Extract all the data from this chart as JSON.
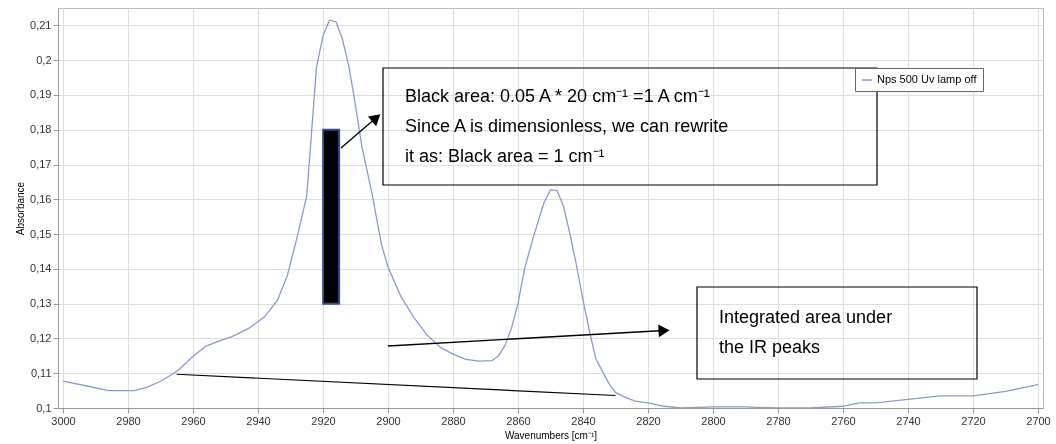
{
  "chart_data": {
    "type": "line",
    "xlabel": "Wavenumbers [cm⁻¹]",
    "ylabel": "Absorbance",
    "xlim": [
      3000,
      2700
    ],
    "xticks": [
      3000,
      2980,
      2960,
      2940,
      2920,
      2900,
      2880,
      2860,
      2840,
      2820,
      2800,
      2780,
      2760,
      2740,
      2720,
      2700
    ],
    "ylim": [
      0.1,
      0.215
    ],
    "yticks": [
      {
        "value": 0.1,
        "label": "0,1"
      },
      {
        "value": 0.11,
        "label": "0,11"
      },
      {
        "value": 0.12,
        "label": "0,12"
      },
      {
        "value": 0.13,
        "label": "0,13"
      },
      {
        "value": 0.14,
        "label": "0,14"
      },
      {
        "value": 0.15,
        "label": "0,15"
      },
      {
        "value": 0.16,
        "label": "0,16"
      },
      {
        "value": 0.17,
        "label": "0,17"
      },
      {
        "value": 0.18,
        "label": "0,18"
      },
      {
        "value": 0.19,
        "label": "0,19"
      },
      {
        "value": 0.2,
        "label": "0,2"
      },
      {
        "value": 0.21,
        "label": "0,21"
      }
    ],
    "grid": true,
    "legend": "top right",
    "series": [
      {
        "name": "Nps 500 Uv lamp off",
        "color": "#8a9cc8",
        "x": [
          3000,
          2993,
          2986,
          2978,
          2974,
          2970,
          2965,
          2960,
          2956,
          2952,
          2948,
          2943,
          2938,
          2934,
          2931,
          2928,
          2925,
          2922,
          2920,
          2918,
          2916,
          2914,
          2912,
          2910,
          2908,
          2905,
          2902,
          2900,
          2896,
          2892,
          2888,
          2884,
          2880,
          2876,
          2872,
          2868,
          2866,
          2864,
          2862,
          2860,
          2858,
          2855,
          2852,
          2850,
          2848,
          2846,
          2844,
          2842,
          2840,
          2838,
          2836,
          2832,
          2830,
          2828,
          2824,
          2820,
          2815,
          2810,
          2800,
          2790,
          2780,
          2770,
          2760,
          2755,
          2750,
          2740,
          2730,
          2720,
          2710,
          2700
        ],
        "values": [
          0.1077,
          0.1064,
          0.105,
          0.105,
          0.106,
          0.1077,
          0.1105,
          0.1148,
          0.1178,
          0.1192,
          0.1205,
          0.1228,
          0.1262,
          0.131,
          0.138,
          0.149,
          0.161,
          0.198,
          0.207,
          0.2115,
          0.211,
          0.206,
          0.198,
          0.187,
          0.175,
          0.162,
          0.147,
          0.1405,
          0.132,
          0.126,
          0.121,
          0.1175,
          0.1155,
          0.114,
          0.1135,
          0.1136,
          0.115,
          0.118,
          0.123,
          0.13,
          0.14,
          0.15,
          0.159,
          0.1627,
          0.1625,
          0.158,
          0.15,
          0.141,
          0.131,
          0.122,
          0.114,
          0.107,
          0.1045,
          0.1035,
          0.102,
          0.1015,
          0.1005,
          0.1,
          0.1003,
          0.1003,
          0.1,
          0.1,
          0.1005,
          0.1015,
          0.1015,
          0.1025,
          0.1035,
          0.1035,
          0.1048,
          0.1067
        ]
      },
      {
        "color": "#000000",
        "type": "line",
        "x": [
          2965,
          2830
        ],
        "values": [
          0.1097,
          0.1036
        ]
      },
      {
        "color": "#000000",
        "type": "bar",
        "x": [
          2917.5
        ],
        "base": [
          0.13
        ],
        "values": [
          0.05
        ]
      }
    ],
    "annotations": [
      "Black area: 0.05 A * 20 cm⁻¹ =1 A cm⁻¹\nSince A is dimensionless, we can rewrite\nit as: Black area = 1 cm⁻¹",
      "Integrated area under\nthe IR peaks"
    ]
  }
}
